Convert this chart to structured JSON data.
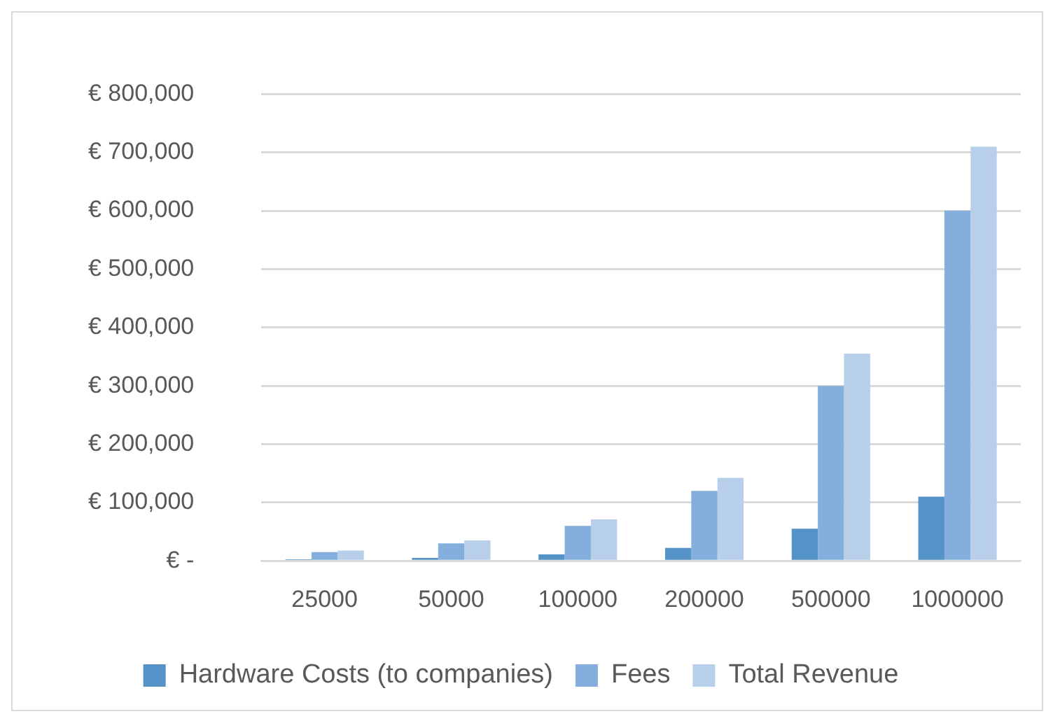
{
  "chart_data": {
    "type": "bar",
    "categories": [
      "25000",
      "50000",
      "100000",
      "200000",
      "500000",
      "1000000"
    ],
    "series": [
      {
        "name": "Hardware Costs (to companies)",
        "color": "#5592c8",
        "values": [
          2500,
          5000,
          11000,
          22000,
          55000,
          110000
        ]
      },
      {
        "name": "Fees",
        "color": "#84afdc",
        "values": [
          15000,
          30000,
          60000,
          120000,
          300000,
          600000
        ]
      },
      {
        "name": "Total Revenue",
        "color": "#b8cfe9",
        "values": [
          17500,
          35000,
          71000,
          142000,
          355000,
          710000
        ]
      }
    ],
    "ylim": [
      0,
      800000
    ],
    "yticks": [
      {
        "value": 0,
        "label": "€ -"
      },
      {
        "value": 100000,
        "label": "€ 100,000"
      },
      {
        "value": 200000,
        "label": "€ 200,000"
      },
      {
        "value": 300000,
        "label": "€ 300,000"
      },
      {
        "value": 400000,
        "label": "€ 400,000"
      },
      {
        "value": 500000,
        "label": "€ 500,000"
      },
      {
        "value": 600000,
        "label": "€ 600,000"
      },
      {
        "value": 700000,
        "label": "€ 700,000"
      },
      {
        "value": 800000,
        "label": "€ 800,000"
      }
    ],
    "grid": "y",
    "legend": "bottom"
  }
}
